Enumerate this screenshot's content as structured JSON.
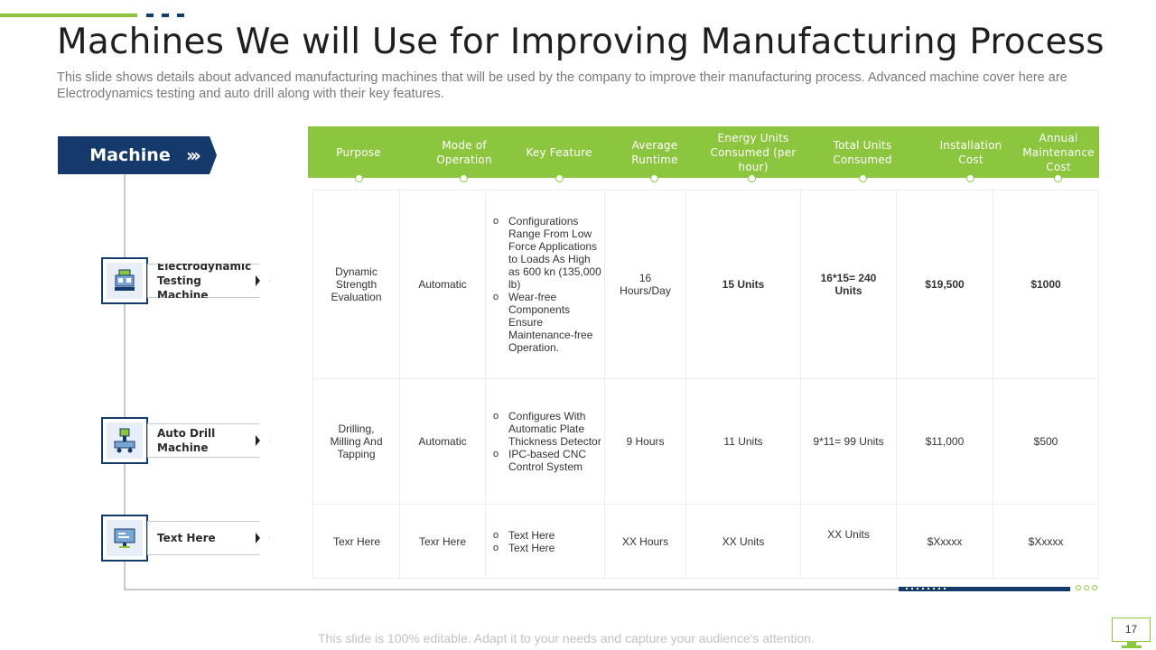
{
  "title": "Machines We will Use for Improving Manufacturing Process",
  "subtitle": "This slide shows details about advanced manufacturing machines that will be used by the company to improve their manufacturing process. Advanced machine cover here are Electrodynamics testing and auto drill along with their key features.",
  "machine_tag": {
    "label": "Machine",
    "chevrons": "›››"
  },
  "machines": [
    {
      "label": "Electrodynamic Testing Machine",
      "icon": "testing-machine-icon"
    },
    {
      "label": "Auto Drill Machine",
      "icon": "auto-drill-icon"
    },
    {
      "label": "Text Here",
      "icon": "monitor-icon"
    }
  ],
  "columns": [
    "Purpose",
    "Mode of Operation",
    "Key Feature",
    "Average Runtime",
    "Energy Units Consumed (per hour)",
    "Total Units Consumed",
    "Installation Cost",
    "Annual Maintenance Cost"
  ],
  "rows": [
    {
      "purpose": "Dynamic Strength Evaluation",
      "mode": "Automatic",
      "features": [
        "Configurations Range From Low Force Applications to Loads As High as 600 kn (135,000 lb)",
        "Wear-free Components Ensure Maintenance-free Operation."
      ],
      "runtime": "16 Hours/Day",
      "energy": "15 Units",
      "total": "16*15= 240 Units",
      "installation": "$19,500",
      "maintenance": "$1000"
    },
    {
      "purpose": "Drilling, Milling And Tapping",
      "mode": "Automatic",
      "features": [
        "Configures With Automatic Plate Thickness Detector",
        "IPC-based CNC Control System"
      ],
      "runtime": "9 Hours",
      "energy": "11 Units",
      "total": "9*11= 99 Units",
      "installation": "$11,000",
      "maintenance": "$500"
    },
    {
      "purpose": "Texr Here",
      "mode": "Texr Here",
      "features": [
        "Text Here",
        "Text Here"
      ],
      "runtime": "XX Hours",
      "energy": "XX Units",
      "total": "XX Units",
      "installation": "$Xxxxx",
      "maintenance": "$Xxxxx"
    }
  ],
  "footer": "This slide is 100% editable. Adapt it to your needs and capture your audience's attention.",
  "page_number": "17",
  "colors": {
    "green": "#8cc63f",
    "navy": "#14396b"
  }
}
